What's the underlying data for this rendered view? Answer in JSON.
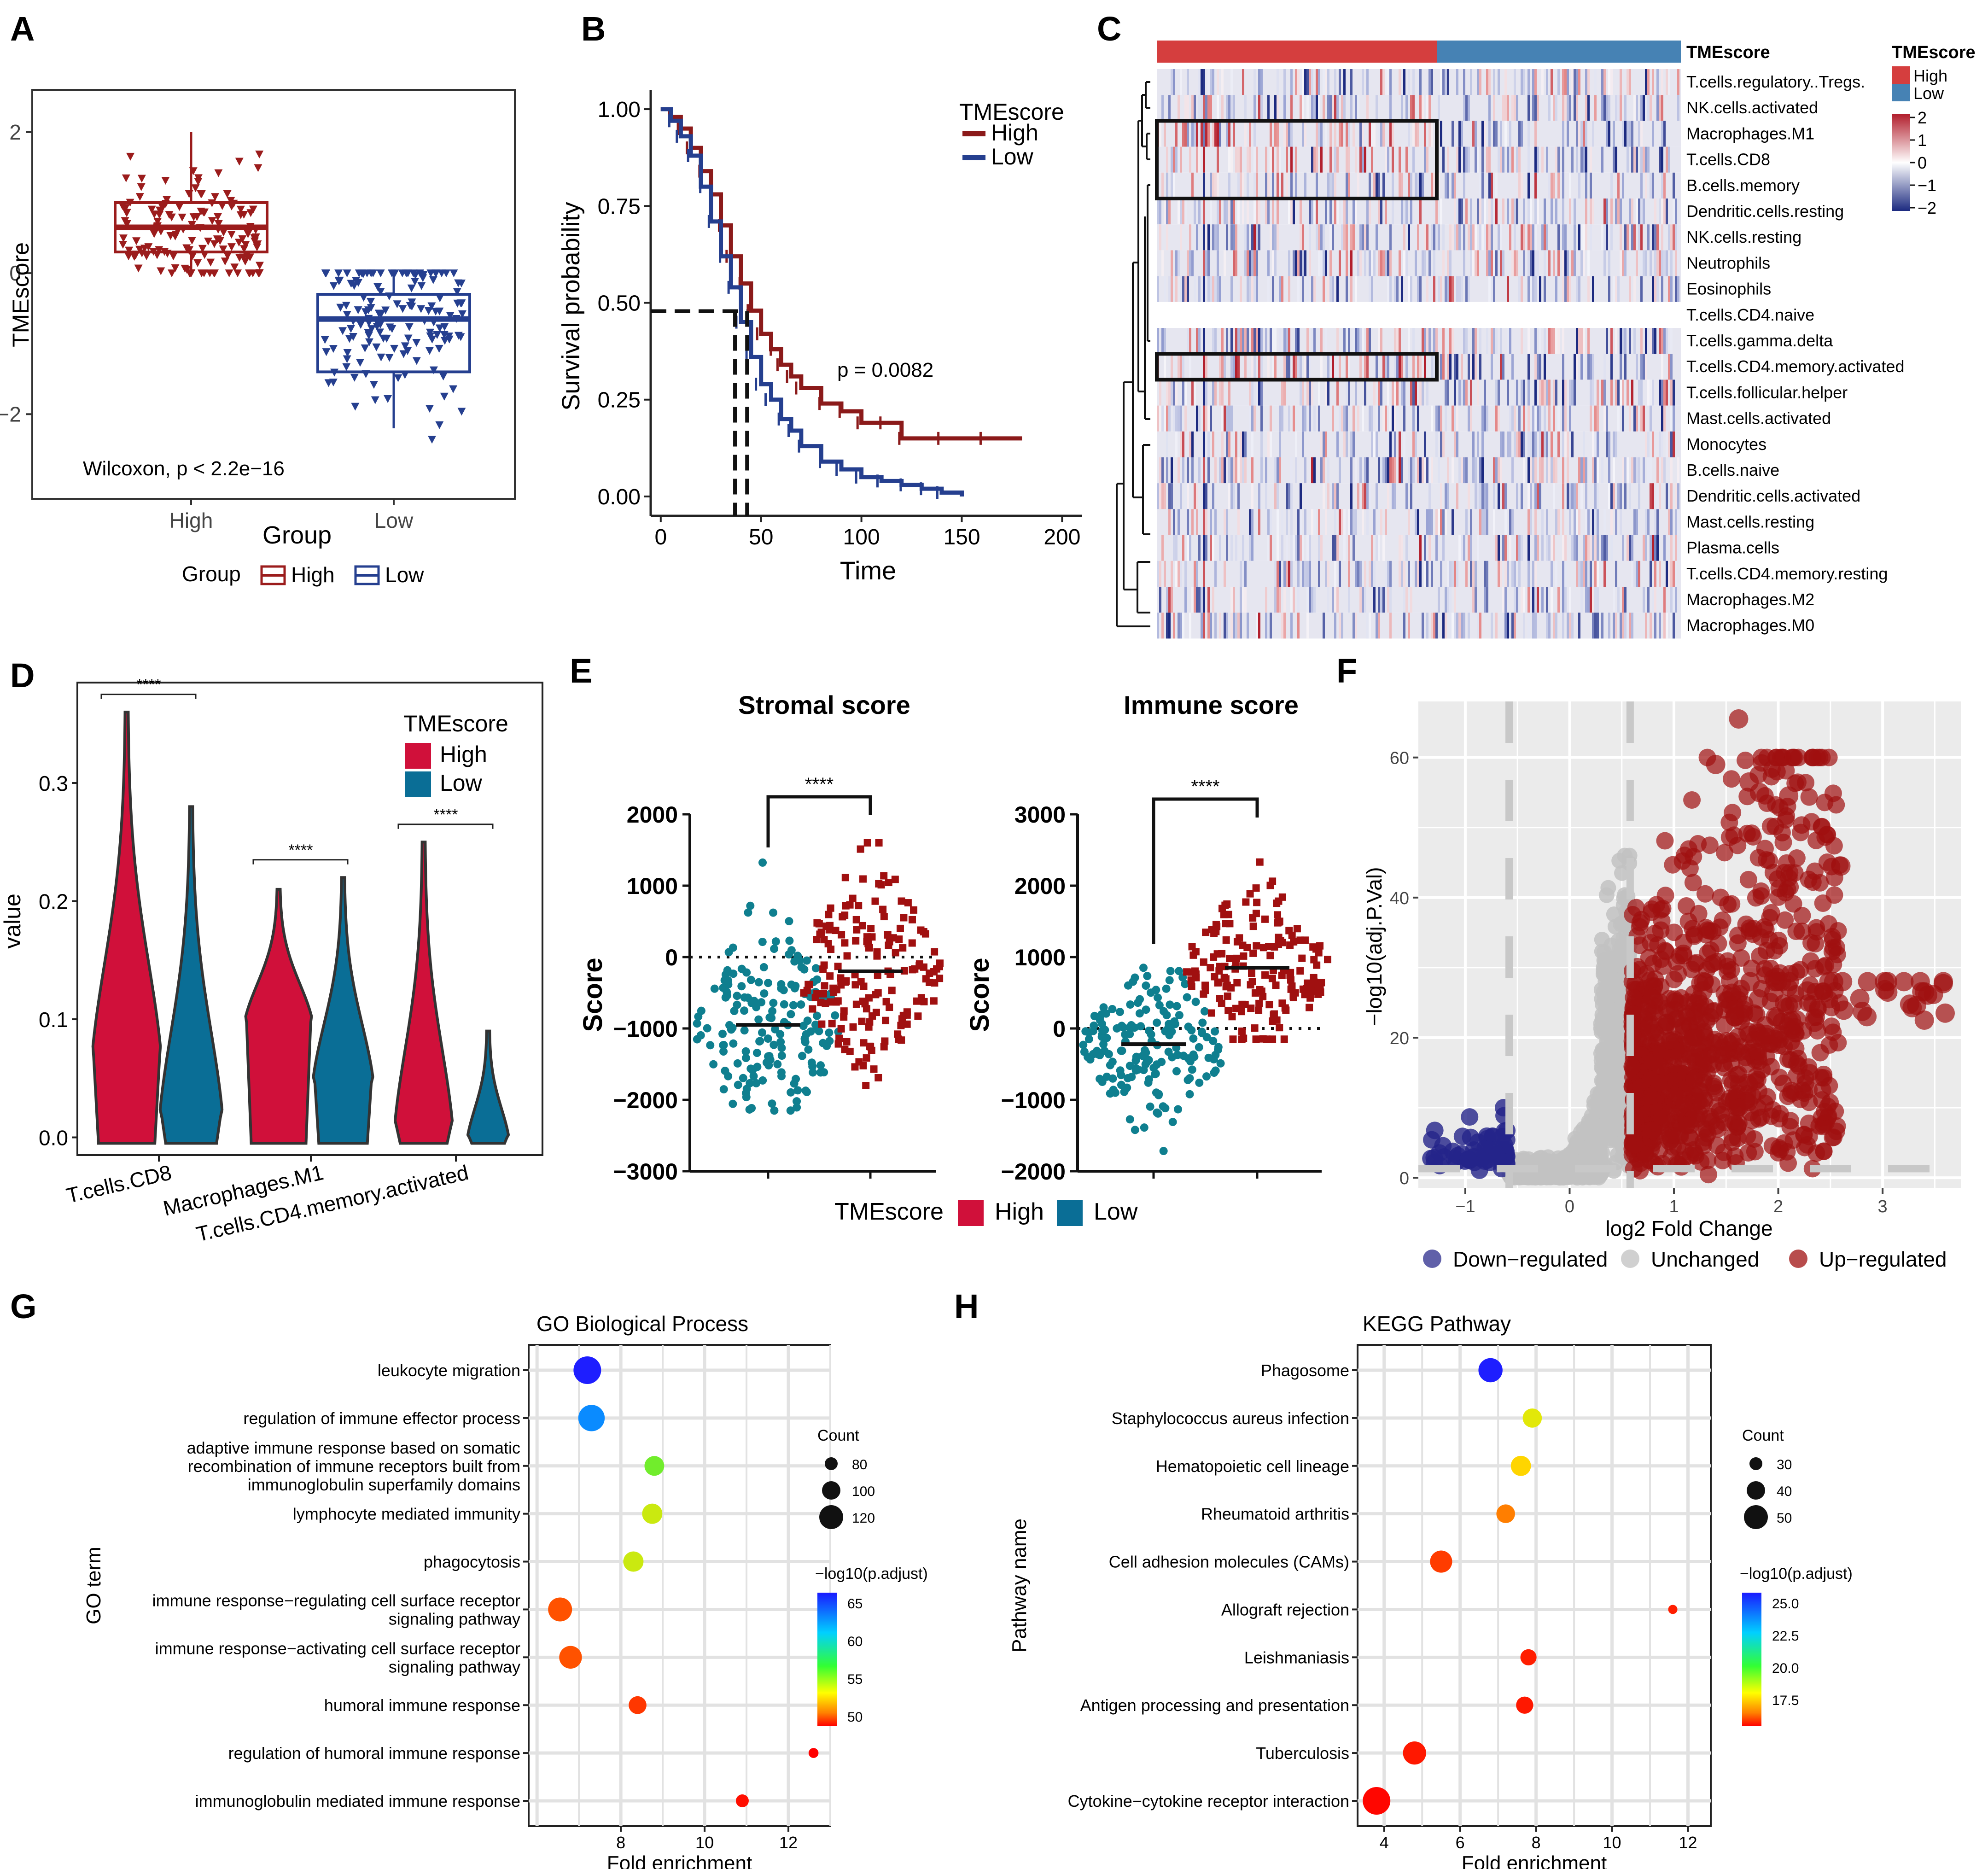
{
  "panels": {
    "A": "A",
    "B": "B",
    "C": "C",
    "D": "D",
    "E": "E",
    "F": "F",
    "G": "G",
    "H": "H"
  },
  "chart_data": [
    {
      "id": "A",
      "type": "boxplot",
      "ylabel": "TMEscore",
      "xlabel": "Group",
      "categories": [
        "High",
        "Low"
      ],
      "yticks": [
        2,
        0,
        -2
      ],
      "ytick_labels": [
        "2",
        "0",
        "−2"
      ],
      "ylim": [
        -3.2,
        2.6
      ],
      "boxes": [
        {
          "group": "High",
          "q1": 0.3,
          "median": 0.65,
          "q3": 1.0,
          "whisker_low": 0.0,
          "whisker_high": 2.0,
          "color": "#9b1c1c"
        },
        {
          "group": "Low",
          "q1": -1.4,
          "median": -0.65,
          "q3": -0.3,
          "whisker_low": -2.2,
          "whisker_high": 0.0,
          "color": "#253f8f"
        }
      ],
      "annotation": "Wilcoxon, p < 2.2e−16",
      "legend": {
        "title": "Group",
        "items": [
          "High",
          "Low"
        ]
      }
    },
    {
      "id": "B",
      "type": "line",
      "title": "",
      "xlabel": "Time",
      "ylabel": "Survival probability",
      "xticks": [
        0,
        50,
        100,
        150,
        200
      ],
      "yticks": [
        0.0,
        0.25,
        0.5,
        0.75,
        1.0
      ],
      "xtick_labels": [
        "0",
        "50",
        "100",
        "150",
        "200"
      ],
      "ytick_labels": [
        "0.00",
        "0.25",
        "0.50",
        "0.75",
        "1.00"
      ],
      "xlim": [
        -5,
        210
      ],
      "ylim": [
        -0.05,
        1.05
      ],
      "legend": {
        "title": "TMEscore",
        "items": [
          "High",
          "Low"
        ]
      },
      "series": [
        {
          "name": "High",
          "color": "#8b1a1a",
          "x": [
            0,
            5,
            10,
            15,
            20,
            25,
            30,
            35,
            40,
            45,
            50,
            55,
            60,
            65,
            70,
            80,
            90,
            100,
            110,
            120,
            140,
            160,
            180
          ],
          "y": [
            1.0,
            0.98,
            0.95,
            0.9,
            0.84,
            0.78,
            0.7,
            0.62,
            0.55,
            0.48,
            0.42,
            0.38,
            0.34,
            0.31,
            0.28,
            0.24,
            0.22,
            0.19,
            0.19,
            0.15,
            0.15,
            0.15,
            0.15
          ]
        },
        {
          "name": "Low",
          "color": "#253f8f",
          "x": [
            0,
            5,
            10,
            15,
            20,
            25,
            30,
            35,
            40,
            45,
            50,
            55,
            60,
            65,
            70,
            80,
            90,
            100,
            110,
            120,
            130,
            140,
            150
          ],
          "y": [
            1.0,
            0.97,
            0.93,
            0.88,
            0.8,
            0.71,
            0.62,
            0.54,
            0.45,
            0.36,
            0.29,
            0.25,
            0.2,
            0.17,
            0.13,
            0.09,
            0.07,
            0.05,
            0.04,
            0.03,
            0.02,
            0.01,
            0.0
          ]
        }
      ],
      "median_survival": {
        "High": 43,
        "Low": 37,
        "level": 0.5
      },
      "annotation": "p = 0.0082"
    },
    {
      "id": "C",
      "type": "heatmap",
      "column_annotation": "TMEscore",
      "rows": [
        "T.cells.regulatory..Tregs.",
        "NK.cells.activated",
        "Macrophages.M1",
        "T.cells.CD8",
        "B.cells.memory",
        "Dendritic.cells.resting",
        "NK.cells.resting",
        "Neutrophils",
        "Eosinophils",
        "T.cells.CD4.naive",
        "T.cells.gamma.delta",
        "T.cells.CD4.memory.activated",
        "T.cells.follicular.helper",
        "Mast.cells.activated",
        "Monocytes",
        "B.cells.naive",
        "Dendritic.cells.activated",
        "Mast.cells.resting",
        "Plasma.cells",
        "T.cells.CD4.memory.resting",
        "Macrophages.M2",
        "Macrophages.M0"
      ],
      "highlighted_rows": [
        "Macrophages.M1",
        "T.cells.CD8",
        "T.cells.CD4.memory.activated"
      ],
      "groups": [
        {
          "name": "High",
          "color": "#d53e3e"
        },
        {
          "name": "Low",
          "color": "#4682b4"
        }
      ],
      "legend": {
        "title": "TMEscore",
        "items": [
          "High",
          "Low"
        ],
        "scale_ticks": [
          "2",
          "1",
          "0",
          "−1",
          "−2"
        ]
      }
    },
    {
      "id": "D",
      "type": "violin",
      "ylabel": "value",
      "categories": [
        "T.cells.CD8",
        "Macrophages.M1",
        "T.cells.CD4.memory.activated"
      ],
      "yticks": [
        0.0,
        0.1,
        0.2,
        0.3
      ],
      "ytick_labels": [
        "0.0",
        "0.1",
        "0.2",
        "0.3"
      ],
      "ylim": [
        -0.015,
        0.385
      ],
      "series": [
        {
          "name": "High",
          "color": "#d0103a",
          "max": [
            0.36,
            0.21,
            0.25
          ],
          "median": [
            0.07,
            0.1,
            0.01
          ]
        },
        {
          "name": "Low",
          "color": "#0a6e96",
          "max": [
            0.28,
            0.22,
            0.09
          ],
          "median": [
            0.02,
            0.05,
            0.0
          ]
        }
      ],
      "significance": [
        "****",
        "****",
        "****"
      ],
      "legend": {
        "title": "TMEscore",
        "items": [
          "High",
          "Low"
        ]
      }
    },
    {
      "id": "E1",
      "type": "scatter",
      "title": "Stromal score",
      "ylabel": "Score",
      "yticks": [
        2000,
        1000,
        0,
        -1000,
        -2000,
        -3000
      ],
      "ytick_labels": [
        "2000",
        "1000",
        "0",
        "−1000",
        "−2000",
        "−3000"
      ],
      "ylim": [
        -3000,
        2000
      ],
      "groups": [
        {
          "name": "Low",
          "color": "#0f7f8f",
          "median": -950,
          "min": -2150,
          "max": 1500
        },
        {
          "name": "High",
          "color": "#a01010",
          "median": -200,
          "min": -1800,
          "max": 1600
        }
      ],
      "significance": "****"
    },
    {
      "id": "E2",
      "type": "scatter",
      "title": "Immune score",
      "ylabel": "Score",
      "yticks": [
        3000,
        2000,
        1000,
        0,
        -1000,
        -2000
      ],
      "ytick_labels": [
        "3000",
        "2000",
        "1000",
        "0",
        "−1000",
        "−2000"
      ],
      "ylim": [
        -2000,
        3000
      ],
      "groups": [
        {
          "name": "Low",
          "color": "#0f7f8f",
          "median": -220,
          "min": -1850,
          "max": 850
        },
        {
          "name": "High",
          "color": "#a01010",
          "median": 850,
          "min": -150,
          "max": 2600
        }
      ],
      "significance": "****",
      "legend": {
        "title": "TMEscore",
        "items": [
          "High",
          "Low"
        ]
      }
    },
    {
      "id": "F",
      "type": "scatter",
      "subtype": "volcano",
      "xlabel": "log2 Fold Change",
      "ylabel": "−log10(adj.P.Val)",
      "xticks": [
        -1,
        0,
        1,
        2,
        3
      ],
      "xtick_labels": [
        "−1",
        "0",
        "1",
        "2",
        "3"
      ],
      "yticks": [
        0,
        20,
        40,
        60
      ],
      "ytick_labels": [
        "0",
        "20",
        "40",
        "60"
      ],
      "xlim": [
        -1.45,
        3.75
      ],
      "ylim": [
        -1.5,
        68
      ],
      "thresholds": {
        "log2fc": [
          -0.58,
          0.58
        ],
        "neg_log10_p": 1.3
      },
      "legend": {
        "items": [
          "Down−regulated",
          "Unchanged",
          "Up−regulated"
        ],
        "colors": [
          "#2b2b8c",
          "#c0c0c0",
          "#a01010"
        ]
      },
      "highlight_points": [
        {
          "x": 1.62,
          "y": 65.5
        },
        {
          "x": 1.4,
          "y": 59
        },
        {
          "x": 2.1,
          "y": 54.5
        },
        {
          "x": 1.82,
          "y": 55
        },
        {
          "x": 1.72,
          "y": 56.5
        },
        {
          "x": 3.6,
          "y": 23.5
        },
        {
          "x": 3.4,
          "y": 22.5
        },
        {
          "x": 2.6,
          "y": 44.5
        },
        {
          "x": 3.05,
          "y": 26.5
        },
        {
          "x": 2.85,
          "y": 23
        }
      ]
    },
    {
      "id": "G",
      "type": "scatter",
      "subtype": "dotplot",
      "title": "GO Biological Process",
      "xlabel": "Fold enrichment",
      "ylabel": "GO term",
      "xticks": [
        8,
        10,
        12
      ],
      "xtick_labels": [
        "8",
        "10",
        "12"
      ],
      "xlim": [
        5.8,
        13.0
      ],
      "terms": [
        {
          "label": [
            "leukocyte migration"
          ],
          "x": 7.2,
          "count": 130,
          "p": 70
        },
        {
          "label": [
            "regulation of immune effector process"
          ],
          "x": 7.3,
          "count": 125,
          "p": 67
        },
        {
          "label": [
            "adaptive immune response based on somatic",
            "recombination of immune receptors built from",
            "immunoglobulin superfamily domains"
          ],
          "x": 8.8,
          "count": 98,
          "p": 60
        },
        {
          "label": [
            "lymphocyte mediated immunity"
          ],
          "x": 8.75,
          "count": 100,
          "p": 58
        },
        {
          "label": [
            "phagocytosis"
          ],
          "x": 8.3,
          "count": 100,
          "p": 58
        },
        {
          "label": [
            "immune response−regulating cell surface receptor",
            "signaling pathway"
          ],
          "x": 6.55,
          "count": 115,
          "p": 51
        },
        {
          "label": [
            "immune response−activating cell surface receptor",
            "signaling pathway"
          ],
          "x": 6.8,
          "count": 110,
          "p": 51
        },
        {
          "label": [
            "humoral immune response"
          ],
          "x": 8.4,
          "count": 90,
          "p": 50
        },
        {
          "label": [
            "regulation of humoral immune response"
          ],
          "x": 12.6,
          "count": 58,
          "p": 48
        },
        {
          "label": [
            "immunoglobulin mediated immune response"
          ],
          "x": 10.9,
          "count": 70,
          "p": 48.5
        }
      ],
      "size_legend": {
        "title": "Count",
        "labels": [
          "80",
          "100",
          "120"
        ]
      },
      "color_legend": {
        "title": "−log10(p.adjust)",
        "labels": [
          "65",
          "60",
          "55",
          "50"
        ]
      }
    },
    {
      "id": "H",
      "type": "scatter",
      "subtype": "dotplot",
      "title": "KEGG Pathway",
      "xlabel": "Fold enrichment",
      "ylabel": "Pathway name",
      "xticks": [
        4,
        6,
        8,
        10,
        12
      ],
      "xtick_labels": [
        "4",
        "6",
        "8",
        "10",
        "12"
      ],
      "xlim": [
        3.3,
        12.6
      ],
      "terms": [
        {
          "label": [
            "Phagosome"
          ],
          "x": 6.8,
          "count": 48,
          "p": 25.5
        },
        {
          "label": [
            "Staphylococcus aureus infection"
          ],
          "x": 7.9,
          "count": 38,
          "p": 19.8
        },
        {
          "label": [
            "Hematopoietic cell lineage"
          ],
          "x": 7.6,
          "count": 40,
          "p": 19.2
        },
        {
          "label": [
            "Rheumatoid arthritis"
          ],
          "x": 7.2,
          "count": 37,
          "p": 17.6
        },
        {
          "label": [
            "Cell adhesion molecules (CAMs)"
          ],
          "x": 5.5,
          "count": 44,
          "p": 16.5
        },
        {
          "label": [
            "Allograft rejection"
          ],
          "x": 11.6,
          "count": 18,
          "p": 16.0
        },
        {
          "label": [
            "Leishmaniasis"
          ],
          "x": 7.8,
          "count": 32,
          "p": 16.0
        },
        {
          "label": [
            "Antigen processing and presentation"
          ],
          "x": 7.7,
          "count": 34,
          "p": 15.9
        },
        {
          "label": [
            "Tuberculosis"
          ],
          "x": 4.8,
          "count": 46,
          "p": 15.9
        },
        {
          "label": [
            "Cytokine−cytokine receptor interaction"
          ],
          "x": 3.8,
          "count": 55,
          "p": 15.6
        }
      ],
      "size_legend": {
        "title": "Count",
        "labels": [
          "30",
          "40",
          "50"
        ]
      },
      "color_legend": {
        "title": "−log10(p.adjust)",
        "labels": [
          "25.0",
          "22.5",
          "20.0",
          "17.5"
        ]
      }
    }
  ]
}
